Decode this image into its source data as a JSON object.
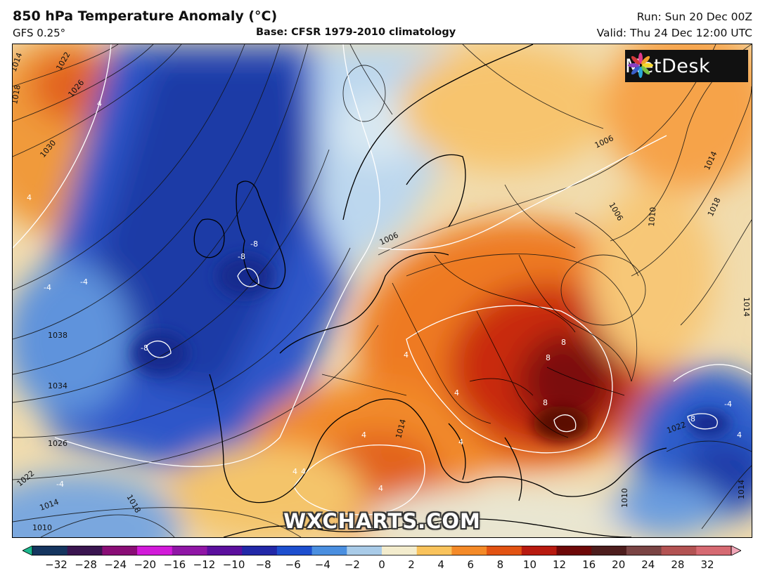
{
  "header": {
    "title": "850 hPa Temperature Anomaly (°C)",
    "model": "GFS 0.25°",
    "base": "Base: CFSR 1979-2010 climatology",
    "run": "Run: Sun 20 Dec 00Z",
    "valid": "Valid: Thu 24 Dec 12:00 UTC"
  },
  "logo": {
    "text": "MetDesk",
    "icon": "metdesk-flower-icon"
  },
  "watermark": "WXCHARTS.COM",
  "colorbar": {
    "ticks": [
      "−32",
      "−28",
      "−24",
      "−20",
      "−16",
      "−12",
      "−10",
      "−8",
      "−6",
      "−4",
      "−2",
      "0",
      "2",
      "4",
      "6",
      "8",
      "10",
      "12",
      "16",
      "20",
      "24",
      "28",
      "32"
    ],
    "colors": [
      "#1bb88e",
      "#15355f",
      "#3a1550",
      "#8a0d76",
      "#d21ad9",
      "#9016a6",
      "#5c0f9e",
      "#2228a8",
      "#1d4fcf",
      "#4a8fe0",
      "#a9cbe8",
      "#f3eccd",
      "#f9c35c",
      "#f48a28",
      "#e25313",
      "#b81a10",
      "#6e0808",
      "#4d1d1d",
      "#7a4444",
      "#b35353",
      "#d66a72",
      "#f1a6b8"
    ]
  },
  "map": {
    "isobar_labels": [
      "1014",
      "1022",
      "1026",
      "1018",
      "1030",
      "1038",
      "1034",
      "1026",
      "1022",
      "1014",
      "1010",
      "1018",
      "1006",
      "1006",
      "1006",
      "1014",
      "1010",
      "1018",
      "1022",
      "1014",
      "1014",
      "1010",
      "1014"
    ],
    "anomaly_labels": [
      "4",
      "4",
      "-4",
      "-8",
      "-8",
      "-4",
      "-8",
      "-4",
      "-4",
      "4",
      "4",
      "4",
      "4",
      "4",
      "4",
      "8",
      "8",
      "8",
      "-8",
      "4",
      "4"
    ]
  }
}
